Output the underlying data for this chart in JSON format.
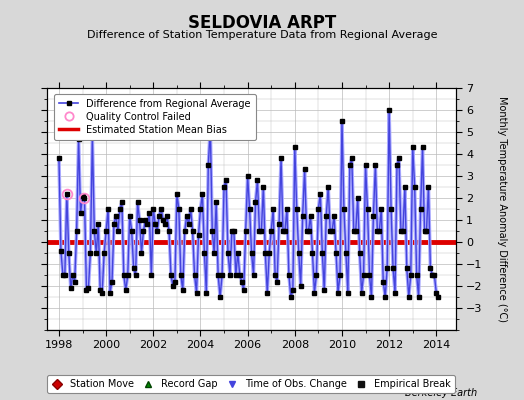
{
  "title": "SELDOVIA ARPT",
  "subtitle": "Difference of Station Temperature Data from Regional Average",
  "ylabel": "Monthly Temperature Anomaly Difference (°C)",
  "mean_bias": 0.0,
  "xlim": [
    1997.5,
    2014.83
  ],
  "ylim": [
    -4,
    7
  ],
  "yticks": [
    -3,
    -2,
    -1,
    0,
    1,
    2,
    3,
    4,
    5,
    6,
    7
  ],
  "xticks": [
    1998,
    2000,
    2002,
    2004,
    2006,
    2008,
    2010,
    2012,
    2014
  ],
  "line_color": "#4444dd",
  "line_color_fill": "#aaaaff",
  "marker_color": "#000000",
  "bias_color": "#dd0000",
  "qc_color": "#ff88cc",
  "background_color": "#d8d8d8",
  "plot_bg_color": "#ffffff",
  "grid_color": "#bbbbbb",
  "footer": "Berkeley Earth",
  "times": [
    1998.0,
    1998.083,
    1998.167,
    1998.25,
    1998.333,
    1998.417,
    1998.5,
    1998.583,
    1998.667,
    1998.75,
    1998.833,
    1998.917,
    1999.0,
    1999.083,
    1999.167,
    1999.25,
    1999.333,
    1999.417,
    1999.5,
    1999.583,
    1999.667,
    1999.75,
    1999.833,
    1999.917,
    2000.0,
    2000.083,
    2000.167,
    2000.25,
    2000.333,
    2000.417,
    2000.5,
    2000.583,
    2000.667,
    2000.75,
    2000.833,
    2000.917,
    2001.0,
    2001.083,
    2001.167,
    2001.25,
    2001.333,
    2001.417,
    2001.5,
    2001.583,
    2001.667,
    2001.75,
    2001.833,
    2001.917,
    2002.0,
    2002.083,
    2002.167,
    2002.25,
    2002.333,
    2002.417,
    2002.5,
    2002.583,
    2002.667,
    2002.75,
    2002.833,
    2002.917,
    2003.0,
    2003.083,
    2003.167,
    2003.25,
    2003.333,
    2003.417,
    2003.5,
    2003.583,
    2003.667,
    2003.75,
    2003.833,
    2003.917,
    2004.0,
    2004.083,
    2004.167,
    2004.25,
    2004.333,
    2004.417,
    2004.5,
    2004.583,
    2004.667,
    2004.75,
    2004.833,
    2004.917,
    2005.0,
    2005.083,
    2005.167,
    2005.25,
    2005.333,
    2005.417,
    2005.5,
    2005.583,
    2005.667,
    2005.75,
    2005.833,
    2005.917,
    2006.0,
    2006.083,
    2006.167,
    2006.25,
    2006.333,
    2006.417,
    2006.5,
    2006.583,
    2006.667,
    2006.75,
    2006.833,
    2006.917,
    2007.0,
    2007.083,
    2007.167,
    2007.25,
    2007.333,
    2007.417,
    2007.5,
    2007.583,
    2007.667,
    2007.75,
    2007.833,
    2007.917,
    2008.0,
    2008.083,
    2008.167,
    2008.25,
    2008.333,
    2008.417,
    2008.5,
    2008.583,
    2008.667,
    2008.75,
    2008.833,
    2008.917,
    2009.0,
    2009.083,
    2009.167,
    2009.25,
    2009.333,
    2009.417,
    2009.5,
    2009.583,
    2009.667,
    2009.75,
    2009.833,
    2009.917,
    2010.0,
    2010.083,
    2010.167,
    2010.25,
    2010.333,
    2010.417,
    2010.5,
    2010.583,
    2010.667,
    2010.75,
    2010.833,
    2010.917,
    2011.0,
    2011.083,
    2011.167,
    2011.25,
    2011.333,
    2011.417,
    2011.5,
    2011.583,
    2011.667,
    2011.75,
    2011.833,
    2011.917,
    2012.0,
    2012.083,
    2012.167,
    2012.25,
    2012.333,
    2012.417,
    2012.5,
    2012.583,
    2012.667,
    2012.75,
    2012.833,
    2012.917,
    2013.0,
    2013.083,
    2013.167,
    2013.25,
    2013.333,
    2013.417,
    2013.5,
    2013.583,
    2013.667,
    2013.75,
    2013.833,
    2013.917,
    2014.0,
    2014.083
  ],
  "values": [
    3.8,
    -0.4,
    -1.5,
    -1.5,
    2.2,
    -0.5,
    -2.1,
    -1.5,
    -1.8,
    0.5,
    4.7,
    1.3,
    2.1,
    2.0,
    -2.2,
    -2.1,
    -0.5,
    4.8,
    0.5,
    -0.5,
    0.8,
    -2.2,
    -2.3,
    -0.5,
    0.5,
    1.5,
    -2.3,
    -1.8,
    0.8,
    1.2,
    0.5,
    1.5,
    1.8,
    -1.5,
    -2.2,
    -1.5,
    1.2,
    0.5,
    -1.2,
    -1.5,
    1.8,
    1.0,
    -0.5,
    0.5,
    1.0,
    0.8,
    1.3,
    -1.5,
    1.5,
    0.8,
    0.5,
    1.2,
    1.5,
    1.0,
    0.8,
    1.2,
    0.5,
    -1.5,
    -2.0,
    -1.8,
    2.2,
    1.5,
    -1.5,
    -2.2,
    0.5,
    1.2,
    0.8,
    1.5,
    0.5,
    -1.5,
    -2.3,
    0.3,
    1.5,
    2.2,
    -0.5,
    -2.3,
    3.5,
    5.2,
    0.5,
    -0.5,
    1.8,
    -1.5,
    -2.5,
    -1.5,
    2.5,
    2.8,
    -0.5,
    -1.5,
    0.5,
    0.5,
    -1.5,
    -0.5,
    -1.5,
    -1.8,
    -2.2,
    0.5,
    3.0,
    1.5,
    -0.5,
    -1.5,
    1.8,
    2.8,
    0.5,
    0.5,
    2.5,
    -0.5,
    -2.3,
    -0.5,
    0.5,
    1.5,
    -1.5,
    -1.8,
    0.8,
    3.8,
    0.5,
    0.5,
    1.5,
    -1.5,
    -2.5,
    -2.2,
    4.3,
    1.5,
    -0.5,
    -2.0,
    1.2,
    3.3,
    0.5,
    0.5,
    1.2,
    -0.5,
    -2.3,
    -1.5,
    1.5,
    2.2,
    -0.5,
    -2.2,
    1.2,
    2.5,
    0.5,
    0.5,
    1.2,
    -0.5,
    -2.3,
    -1.5,
    5.5,
    1.5,
    -0.5,
    -2.3,
    3.5,
    3.8,
    0.5,
    0.5,
    2.0,
    -0.5,
    -2.3,
    -1.5,
    3.5,
    1.5,
    -1.5,
    -2.5,
    1.2,
    3.5,
    0.5,
    0.5,
    1.5,
    -1.8,
    -2.5,
    -1.2,
    6.0,
    1.5,
    -1.2,
    -2.3,
    3.5,
    3.8,
    0.5,
    0.5,
    2.5,
    -1.2,
    -2.5,
    -1.5,
    4.3,
    2.5,
    -1.5,
    -2.5,
    1.5,
    4.3,
    0.5,
    0.5,
    2.5,
    -1.2,
    -1.5,
    -1.5,
    -2.3,
    -2.5
  ],
  "qc_failed_times": [
    1998.333,
    1999.083
  ],
  "qc_failed_values": [
    2.2,
    2.0
  ],
  "title_fontsize": 12,
  "subtitle_fontsize": 8,
  "axis_fontsize": 7,
  "tick_fontsize": 8,
  "legend_fontsize": 7,
  "footer_fontsize": 7
}
